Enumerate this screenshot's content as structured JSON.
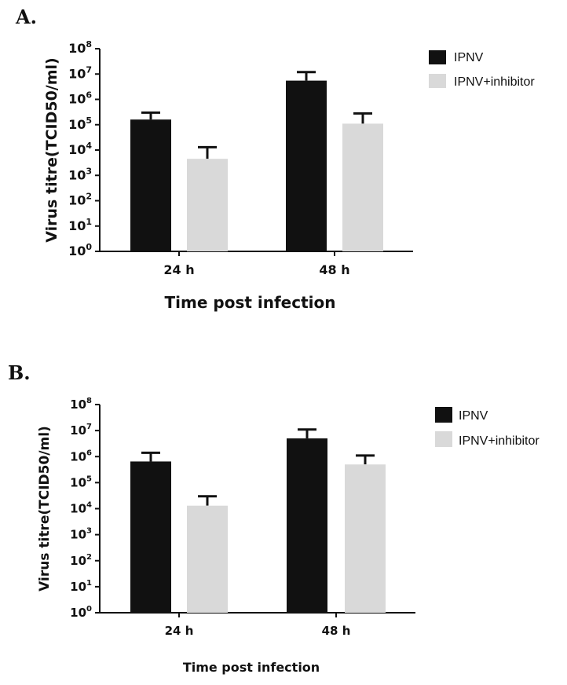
{
  "chart_data": [
    {
      "panel_label": "A.",
      "type": "bar",
      "yscale": "log10",
      "ylim": [
        1,
        100000000
      ],
      "y_ticks": [
        {
          "base": "10",
          "exp": "0"
        },
        {
          "base": "10",
          "exp": "1"
        },
        {
          "base": "10",
          "exp": "2"
        },
        {
          "base": "10",
          "exp": "3"
        },
        {
          "base": "10",
          "exp": "4"
        },
        {
          "base": "10",
          "exp": "5"
        },
        {
          "base": "10",
          "exp": "6"
        },
        {
          "base": "10",
          "exp": "7"
        },
        {
          "base": "10",
          "exp": "8"
        }
      ],
      "ylabel": "Virus titre(TCID50/ml)",
      "xlabel": "Time post infection",
      "categories": [
        "24 h",
        "48 h"
      ],
      "series": [
        {
          "name": "IPNV",
          "color": "#111111",
          "values": [
            160000,
            5500000
          ],
          "error_upper": [
            300000,
            12000000
          ]
        },
        {
          "name": "IPNV+inhibitor",
          "color": "#d9d9d9",
          "values": [
            4500,
            110000
          ],
          "error_upper": [
            13000,
            280000
          ]
        }
      ],
      "legend": "top-right"
    },
    {
      "panel_label": "B.",
      "type": "bar",
      "yscale": "log10",
      "ylim": [
        1,
        100000000
      ],
      "y_ticks": [
        {
          "base": "10",
          "exp": "0"
        },
        {
          "base": "10",
          "exp": "1"
        },
        {
          "base": "10",
          "exp": "2"
        },
        {
          "base": "10",
          "exp": "3"
        },
        {
          "base": "10",
          "exp": "4"
        },
        {
          "base": "10",
          "exp": "5"
        },
        {
          "base": "10",
          "exp": "6"
        },
        {
          "base": "10",
          "exp": "7"
        },
        {
          "base": "10",
          "exp": "8"
        }
      ],
      "ylabel": "Virus titre(TCID50/ml)",
      "xlabel": "Time post infection",
      "categories": [
        "24 h",
        "48 h"
      ],
      "series": [
        {
          "name": "IPNV",
          "color": "#111111",
          "values": [
            650000,
            5000000
          ],
          "error_upper": [
            1400000,
            11000000
          ]
        },
        {
          "name": "IPNV+inhibitor",
          "color": "#d9d9d9",
          "values": [
            13000,
            500000
          ],
          "error_upper": [
            30000,
            1100000
          ]
        }
      ],
      "legend": "top-right"
    }
  ]
}
